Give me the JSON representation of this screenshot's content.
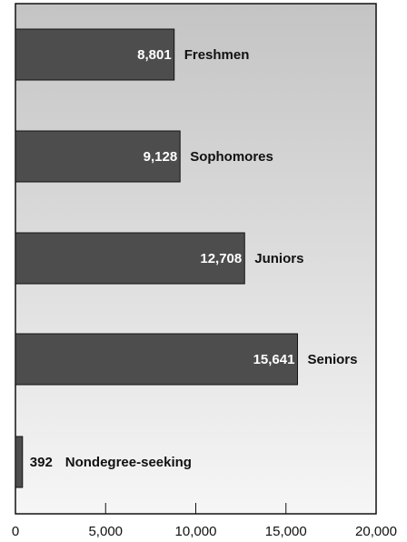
{
  "chart_data": {
    "type": "bar",
    "orientation": "horizontal",
    "categories": [
      "Freshmen",
      "Sophomores",
      "Juniors",
      "Seniors",
      "Nondegree-seeking"
    ],
    "values": [
      8801,
      9128,
      12708,
      15641,
      392
    ],
    "value_labels": [
      "8,801",
      "9,128",
      "12,708",
      "15,641",
      "392"
    ],
    "xlim": [
      0,
      20000
    ],
    "x_ticks": [
      0,
      5000,
      10000,
      15000,
      20000
    ],
    "x_tick_labels": [
      "0",
      "5,000",
      "10,000",
      "15,000",
      "20,000"
    ],
    "grid": false,
    "legend": "none",
    "colors": {
      "bar": "#4d4d4d",
      "bar_stroke": "#111111",
      "plot_bg_top": "#c4c4c4",
      "plot_bg_bottom": "#f6f6f6",
      "axis": "#111111"
    }
  }
}
